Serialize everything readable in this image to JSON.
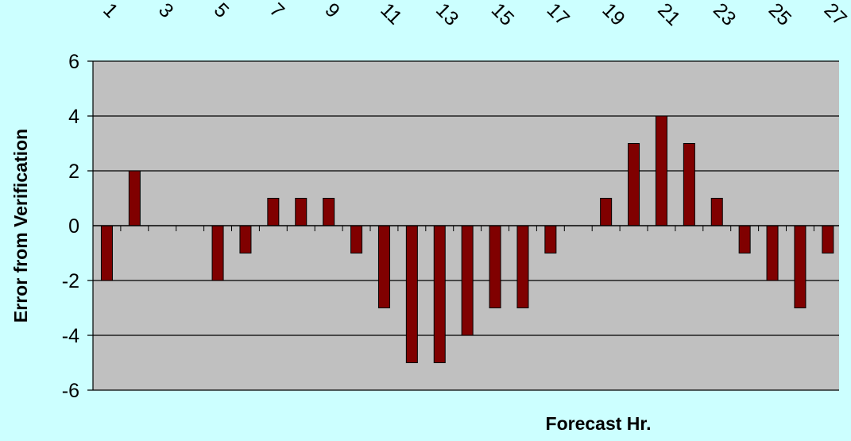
{
  "chart_data": {
    "type": "bar",
    "title": "",
    "xlabel": "Forecast Hr.",
    "ylabel": "Error from Verification",
    "ylim": [
      -6,
      6
    ],
    "ytick_values": [
      6,
      4,
      2,
      0,
      -2,
      -4,
      -6
    ],
    "ytick_labels": [
      "6",
      "4",
      "2",
      "0",
      "-2",
      "-4",
      "-6"
    ],
    "categories": [
      1,
      2,
      3,
      4,
      5,
      6,
      7,
      8,
      9,
      10,
      11,
      12,
      13,
      14,
      15,
      16,
      17,
      18,
      19,
      20,
      21,
      22,
      23,
      24,
      25,
      26,
      27
    ],
    "xtick_labels": [
      "1",
      "3",
      "5",
      "7",
      "9",
      "11",
      "13",
      "15",
      "17",
      "19",
      "21",
      "23",
      "25",
      "27"
    ],
    "values": [
      -2,
      2,
      0,
      0,
      -2,
      -1,
      1,
      1,
      1,
      -1,
      -3,
      -5,
      -5,
      -4,
      -3,
      -3,
      -1,
      0,
      1,
      3,
      4,
      3,
      1,
      -1,
      -2,
      -3,
      -1
    ],
    "x_axis_position": "top",
    "grid": "horizontal",
    "colors": {
      "background": "#ccffff",
      "plot_area": "#c0c0c0",
      "bar": "#800000",
      "gridline": "#000000"
    }
  }
}
